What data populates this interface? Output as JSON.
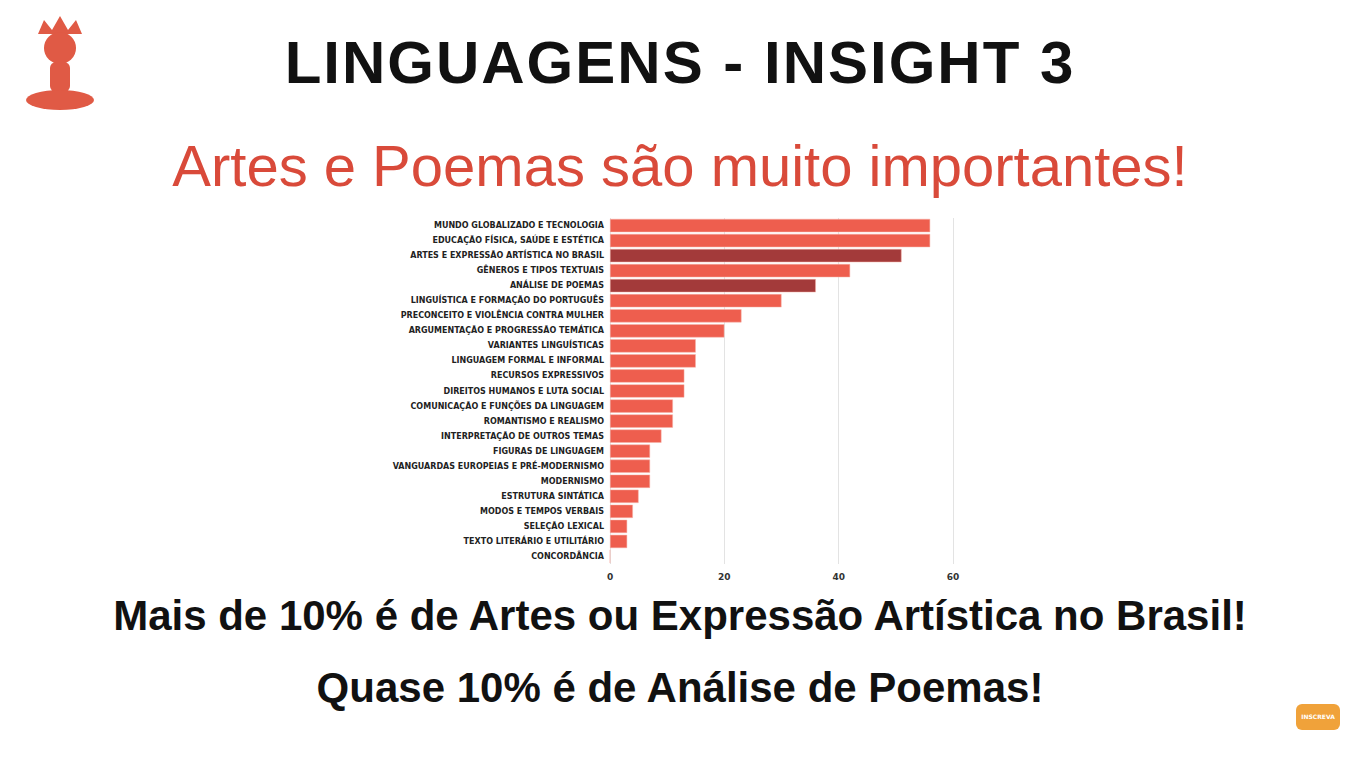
{
  "header": {
    "title": "LINGUAGENS - INSIGHT 3",
    "subtitle": "Artes e Poemas são muito importantes!"
  },
  "chart_data": {
    "type": "bar",
    "orientation": "horizontal",
    "grid": true,
    "categories": [
      "MUNDO GLOBALIZADO E TECNOLOGIA",
      "EDUCAÇÃO FÍSICA, SAÚDE E ESTÉTICA",
      "ARTES E EXPRESSÃO ARTÍSTICA NO BRASIL",
      "GÊNEROS E TIPOS TEXTUAIS",
      "ANÁLISE DE POEMAS",
      "LINGUÍSTICA E FORMAÇÃO DO PORTUGUÊS",
      "PRECONCEITO E VIOLÊNCIA CONTRA MULHER",
      "ARGUMENTAÇÃO E PROGRESSÃO TEMÁTICA",
      "VARIANTES LINGUÍSTICAS",
      "LINGUAGEM FORMAL E INFORMAL",
      "RECURSOS EXPRESSIVOS",
      "DIREITOS HUMANOS E LUTA SOCIAL",
      "COMUNICAÇÃO E FUNÇÕES DA LINGUAGEM",
      "ROMANTISMO E REALISMO",
      "INTERPRETAÇÃO DE OUTROS TEMAS",
      "FIGURAS DE LINGUAGEM",
      "VANGUARDAS EUROPEIAS E PRÉ-MODERNISMO",
      "MODERNISMO",
      "ESTRUTURA SINTÁTICA",
      "MODOS E TEMPOS VERBAIS",
      "SELEÇÃO LEXICAL",
      "TEXTO LITERÁRIO E UTILITÁRIO",
      "CONCORDÂNCIA"
    ],
    "values": [
      56,
      56,
      51,
      42,
      36,
      30,
      23,
      20,
      15,
      15,
      13,
      13,
      11,
      11,
      9,
      7,
      7,
      7,
      5,
      4,
      3,
      3,
      0
    ],
    "colors": [
      "#ee5e4e",
      "#ee5e4e",
      "#a33a3a",
      "#ee5e4e",
      "#a33a3a",
      "#ee5e4e",
      "#ee5e4e",
      "#ee5e4e",
      "#ee5e4e",
      "#ee5e4e",
      "#ee5e4e",
      "#ee5e4e",
      "#ee5e4e",
      "#ee5e4e",
      "#ee5e4e",
      "#ee5e4e",
      "#ee5e4e",
      "#ee5e4e",
      "#ee5e4e",
      "#ee5e4e",
      "#ee5e4e",
      "#ee5e4e",
      "#ee5e4e"
    ],
    "xlim": [
      0,
      60
    ],
    "xticks": [
      0,
      20,
      40,
      60
    ]
  },
  "footer": {
    "lines": [
      "Mais de 10% é de Artes ou Expressão Artística no Brasil!",
      "Quase 10% é de Análise de Poemas!"
    ]
  },
  "badge": "INSCREVA"
}
